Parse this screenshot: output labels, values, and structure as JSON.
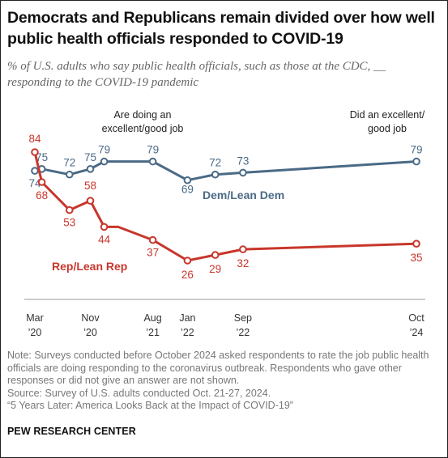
{
  "title": "Democrats and Republicans remain divided over how well public health officials responded to COVID-19",
  "subtitle": "% of U.S. adults who say public health officials, such as those at the CDC, __ responding to the COVID-19 pandemic",
  "notes": [
    "Note: Surveys conducted before October 2024 asked respondents to rate the job public health officials are doing responding to the coronavirus outbreak. Respondents who gave other responses or did not give an answer are not shown.",
    "Source: Survey of U.S. adults conducted Oct. 21-27, 2024.",
    "“5 Years Later: America Looks Back at the Impact of COVID-19”"
  ],
  "brand": "PEW RESEARCH CENTER",
  "chart_data": {
    "type": "line",
    "title": "",
    "xlabel": "",
    "ylabel": "",
    "x": [
      "2020-03",
      "2020-04",
      "2020-08",
      "2020-11",
      "2021-01",
      "2021-03",
      "2021-08",
      "2022-01",
      "2022-05",
      "2022-09",
      "2024-10"
    ],
    "x_tick_labels": [
      {
        "x": "2020-03",
        "line1": "Mar",
        "line2": "’20"
      },
      {
        "x": "2020-11",
        "line1": "Nov",
        "line2": "’20"
      },
      {
        "x": "2021-08",
        "line1": "Aug",
        "line2": "’21"
      },
      {
        "x": "2022-01",
        "line1": "Jan",
        "line2": "’22"
      },
      {
        "x": "2022-09",
        "line1": "Sep",
        "line2": "’22"
      },
      {
        "x": "2024-10",
        "line1": "Oct",
        "line2": "’24"
      }
    ],
    "series": [
      {
        "name": "Dem/Lean Dem",
        "color": "#4a6a86",
        "values": [
          74,
          75,
          72,
          75,
          79,
          79,
          79,
          69,
          72,
          73,
          79
        ]
      },
      {
        "name": "Rep/Lean Rep",
        "color": "#c8362b",
        "values": [
          84,
          68,
          53,
          58,
          44,
          44,
          37,
          26,
          29,
          32,
          35
        ]
      }
    ],
    "annotations": [
      {
        "text": [
          "Are doing an",
          "excellent/good job"
        ]
      },
      {
        "text": [
          "Did an excellent/",
          "good job"
        ]
      }
    ],
    "grid": false
  }
}
